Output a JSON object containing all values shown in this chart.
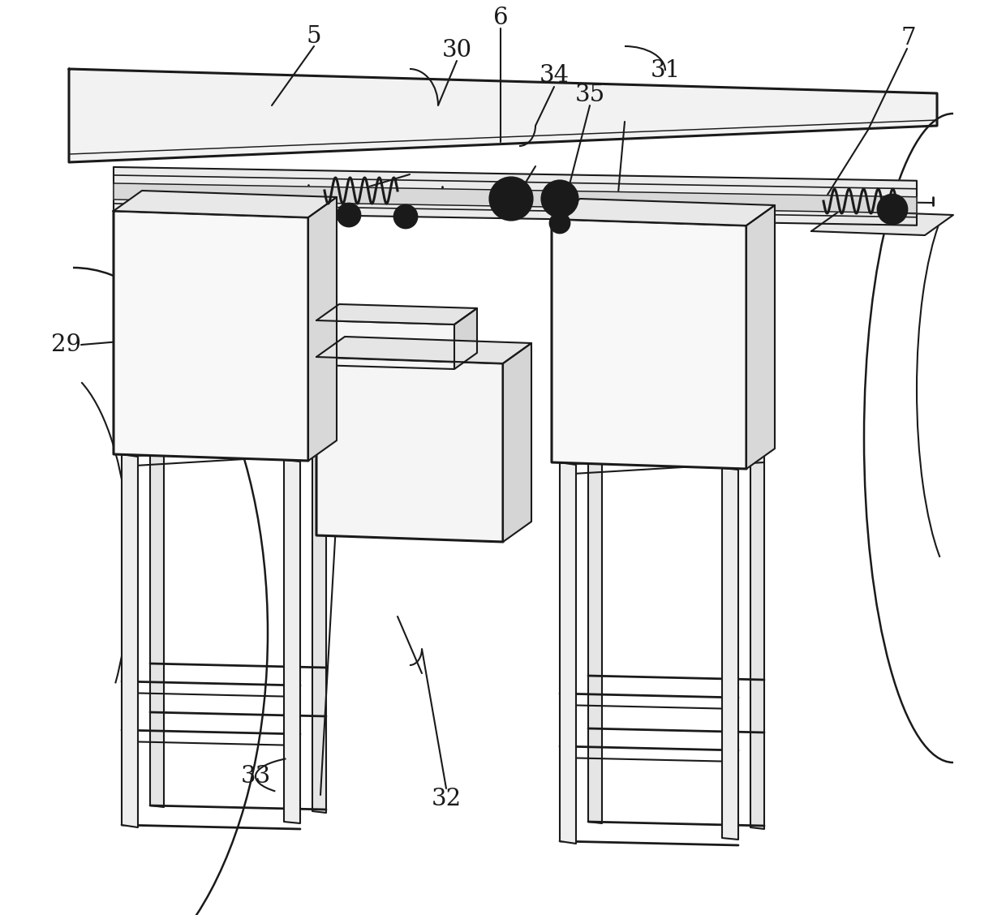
{
  "bg_color": "#ffffff",
  "line_color": "#1a1a1a",
  "lw": 1.5,
  "tlw": 2.2,
  "label_fontsize": 21,
  "figsize": [
    12.4,
    11.28
  ],
  "dpi": 100
}
